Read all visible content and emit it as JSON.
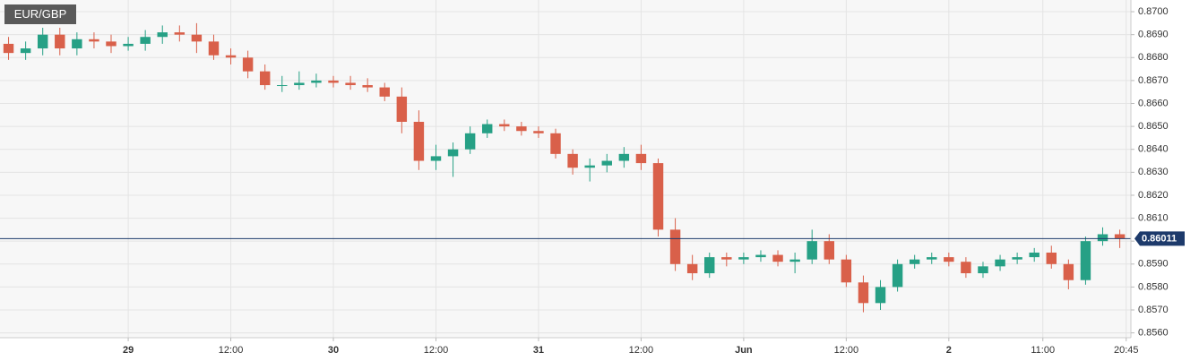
{
  "chart_data": {
    "type": "candlestick",
    "title": "EUR/GBP",
    "x": [
      1,
      3,
      5,
      7,
      9,
      11,
      13,
      15,
      17,
      19,
      21,
      23,
      25,
      27,
      29,
      31,
      33,
      35,
      37,
      39,
      41,
      43,
      45,
      47,
      49,
      51,
      53,
      55,
      57,
      59,
      61,
      63,
      65,
      67,
      69,
      71,
      73,
      75,
      77,
      79,
      81,
      83,
      85,
      87,
      89,
      91,
      93,
      95,
      97,
      99,
      101,
      103,
      105,
      107,
      109,
      111,
      113,
      115,
      117,
      119,
      121,
      123,
      125,
      127,
      129,
      131
    ],
    "open": [
      0.8686,
      0.8682,
      0.8684,
      0.869,
      0.8684,
      0.8688,
      0.8687,
      0.8685,
      0.8686,
      0.8689,
      0.8691,
      0.869,
      0.8687,
      0.8681,
      0.868,
      0.8674,
      0.8668,
      0.8668,
      0.8669,
      0.867,
      0.8669,
      0.8668,
      0.8667,
      0.8663,
      0.8652,
      0.8635,
      0.8637,
      0.864,
      0.8647,
      0.8651,
      0.865,
      0.8648,
      0.8647,
      0.8638,
      0.8632,
      0.8633,
      0.8635,
      0.8638,
      0.8634,
      0.8605,
      0.859,
      0.8586,
      0.8593,
      0.8592,
      0.8593,
      0.8594,
      0.8591,
      0.8592,
      0.86,
      0.8592,
      0.8582,
      0.8573,
      0.858,
      0.859,
      0.8592,
      0.8593,
      0.8591,
      0.8586,
      0.8589,
      0.8592,
      0.8593,
      0.8595,
      0.859,
      0.8583,
      0.86,
      0.8603
    ],
    "high": [
      0.8689,
      0.8687,
      0.8693,
      0.8693,
      0.8691,
      0.8691,
      0.869,
      0.8689,
      0.8692,
      0.8694,
      0.8694,
      0.8695,
      0.869,
      0.8684,
      0.8683,
      0.8677,
      0.8672,
      0.8674,
      0.8673,
      0.8672,
      0.8672,
      0.8671,
      0.8669,
      0.8667,
      0.8657,
      0.8642,
      0.8643,
      0.865,
      0.8653,
      0.8653,
      0.8652,
      0.865,
      0.8649,
      0.864,
      0.8636,
      0.8638,
      0.8641,
      0.8642,
      0.8636,
      0.861,
      0.8594,
      0.8595,
      0.8595,
      0.8595,
      0.8596,
      0.8596,
      0.8595,
      0.8605,
      0.8603,
      0.8594,
      0.8585,
      0.8583,
      0.8592,
      0.8594,
      0.8595,
      0.8595,
      0.8593,
      0.8591,
      0.8594,
      0.8595,
      0.8597,
      0.8598,
      0.8592,
      0.8602,
      0.8606,
      0.8605
    ],
    "low": [
      0.8679,
      0.8679,
      0.8681,
      0.8681,
      0.8681,
      0.8684,
      0.8682,
      0.8683,
      0.8683,
      0.8686,
      0.8687,
      0.8682,
      0.8679,
      0.8677,
      0.8671,
      0.8666,
      0.8665,
      0.8666,
      0.8667,
      0.8667,
      0.8666,
      0.8665,
      0.8661,
      0.8647,
      0.8631,
      0.8631,
      0.8628,
      0.8638,
      0.8645,
      0.8648,
      0.8646,
      0.8645,
      0.8636,
      0.8629,
      0.8626,
      0.863,
      0.8632,
      0.8631,
      0.8602,
      0.8587,
      0.8583,
      0.8584,
      0.8589,
      0.859,
      0.8591,
      0.8589,
      0.8586,
      0.859,
      0.859,
      0.858,
      0.8569,
      0.857,
      0.8578,
      0.8588,
      0.859,
      0.8589,
      0.8584,
      0.8584,
      0.8587,
      0.859,
      0.8591,
      0.8588,
      0.8579,
      0.8581,
      0.8598,
      0.8597
    ],
    "close": [
      0.8682,
      0.8684,
      0.869,
      0.8684,
      0.8688,
      0.8687,
      0.8685,
      0.8686,
      0.8689,
      0.8691,
      0.869,
      0.8687,
      0.8681,
      0.868,
      0.8674,
      0.8668,
      0.8668,
      0.8669,
      0.867,
      0.8669,
      0.8668,
      0.8667,
      0.8663,
      0.8652,
      0.8635,
      0.8637,
      0.864,
      0.8647,
      0.8651,
      0.865,
      0.8648,
      0.8647,
      0.8638,
      0.8632,
      0.8633,
      0.8635,
      0.8638,
      0.8634,
      0.8605,
      0.859,
      0.8586,
      0.8593,
      0.8592,
      0.8593,
      0.8594,
      0.8591,
      0.8592,
      0.86,
      0.8592,
      0.8582,
      0.8573,
      0.858,
      0.859,
      0.8592,
      0.8593,
      0.8591,
      0.8586,
      0.8589,
      0.8592,
      0.8593,
      0.8595,
      0.859,
      0.8583,
      0.86,
      0.8603,
      0.86011
    ],
    "up_color": "#26a085",
    "down_color": "#d9604a",
    "last_color": "#1d3a6b",
    "last_price": 0.86011,
    "xlim": [
      0,
      132.3
    ],
    "xticks": [
      {
        "value": 15,
        "label": "29"
      },
      {
        "value": 27,
        "label": "12:00"
      },
      {
        "value": 39,
        "label": "30"
      },
      {
        "value": 51,
        "label": "12:00"
      },
      {
        "value": 63,
        "label": "31"
      },
      {
        "value": 75,
        "label": "12:00"
      },
      {
        "value": 87,
        "label": "Jun"
      },
      {
        "value": 99,
        "label": "12:00"
      },
      {
        "value": 111,
        "label": "2"
      },
      {
        "value": 122,
        "label": "11:00"
      },
      {
        "value": 131.75,
        "label": "20:45"
      }
    ],
    "ylim": [
      0.85579,
      0.87051
    ],
    "yticks": [
      {
        "value": 0.856,
        "label": "0.8560"
      },
      {
        "value": 0.857,
        "label": "0.8570"
      },
      {
        "value": 0.858,
        "label": "0.8580"
      },
      {
        "value": 0.859,
        "label": "0.8590"
      },
      {
        "value": 0.86,
        "label": "0.8600"
      },
      {
        "value": 0.861,
        "label": "0.8610"
      },
      {
        "value": 0.862,
        "label": "0.8620"
      },
      {
        "value": 0.863,
        "label": "0.8630"
      },
      {
        "value": 0.864,
        "label": "0.8640"
      },
      {
        "value": 0.865,
        "label": "0.8650"
      },
      {
        "value": 0.866,
        "label": "0.8660"
      },
      {
        "value": 0.867,
        "label": "0.8670"
      },
      {
        "value": 0.868,
        "label": "0.8680"
      },
      {
        "value": 0.869,
        "label": "0.8690"
      },
      {
        "value": 0.87,
        "label": "0.8700"
      }
    ],
    "grid": true
  }
}
